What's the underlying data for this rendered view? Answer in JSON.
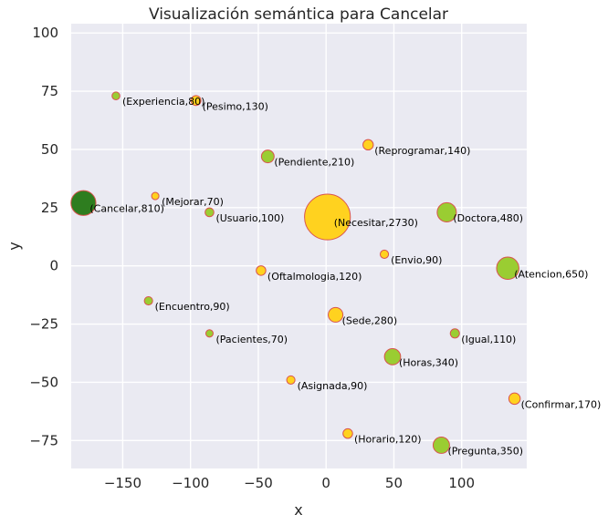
{
  "chart_data": {
    "type": "scatter",
    "title": "Visualización semántica para Cancelar",
    "xlabel": "x",
    "ylabel": "y",
    "xlim": [
      -188,
      148
    ],
    "ylim": [
      -87,
      104
    ],
    "xticks": [
      -150,
      -100,
      -50,
      0,
      50,
      100
    ],
    "yticks": [
      -75,
      -50,
      -25,
      0,
      25,
      50,
      75,
      100
    ],
    "xtick_labels": [
      "−150",
      "−100",
      "−50",
      "0",
      "50",
      "100"
    ],
    "ytick_labels": [
      "−75",
      "−50",
      "−25",
      "0",
      "25",
      "50",
      "75",
      "100"
    ],
    "grid": true,
    "colors": {
      "background": "#eaeaf2",
      "grid": "#ffffff",
      "edge": "#d9534f",
      "yellow": "#ffd21f",
      "green": "#9acd32",
      "dark_green": "#2e7d1f"
    },
    "points": [
      {
        "word": "Cancelar",
        "value": 810,
        "x": -179,
        "y": 27,
        "color": "dark_green",
        "label": "(Cancelar,810)"
      },
      {
        "word": "Experiencia",
        "value": 80,
        "x": -155,
        "y": 73,
        "color": "green",
        "label": "(Experiencia,80)"
      },
      {
        "word": "Pesimo",
        "value": 130,
        "x": -96,
        "y": 71,
        "color": "yellow",
        "label": "(Pesimo,130)"
      },
      {
        "word": "Reprogramar",
        "value": 140,
        "x": 31,
        "y": 52,
        "color": "yellow",
        "label": "(Reprogramar,140)"
      },
      {
        "word": "Pendiente",
        "value": 210,
        "x": -43,
        "y": 47,
        "color": "green",
        "label": "(Pendiente,210)"
      },
      {
        "word": "Mejorar",
        "value": 70,
        "x": -126,
        "y": 30,
        "color": "yellow",
        "label": "(Mejorar,70)"
      },
      {
        "word": "Usuario",
        "value": 100,
        "x": -86,
        "y": 23,
        "color": "green",
        "label": "(Usuario,100)"
      },
      {
        "word": "Necesitar",
        "value": 2730,
        "x": 1,
        "y": 21,
        "color": "yellow",
        "label": "(Necesitar,2730)"
      },
      {
        "word": "Doctora",
        "value": 480,
        "x": 89,
        "y": 23,
        "color": "green",
        "label": "(Doctora,480)"
      },
      {
        "word": "Envio",
        "value": 90,
        "x": 43,
        "y": 5,
        "color": "yellow",
        "label": "(Envio,90)"
      },
      {
        "word": "Atencion",
        "value": 650,
        "x": 134,
        "y": -1,
        "color": "green",
        "label": "(Atencion,650)"
      },
      {
        "word": "Oftalmologia",
        "value": 120,
        "x": -48,
        "y": -2,
        "color": "yellow",
        "label": "(Oftalmologia,120)"
      },
      {
        "word": "Encuentro",
        "value": 90,
        "x": -131,
        "y": -15,
        "color": "green",
        "label": "(Encuentro,90)"
      },
      {
        "word": "Sede",
        "value": 280,
        "x": 7,
        "y": -21,
        "color": "yellow",
        "label": "(Sede,280)"
      },
      {
        "word": "Pacientes",
        "value": 70,
        "x": -86,
        "y": -29,
        "color": "green",
        "label": "(Pacientes,70)"
      },
      {
        "word": "Igual",
        "value": 110,
        "x": 95,
        "y": -29,
        "color": "green",
        "label": "(Igual,110)"
      },
      {
        "word": "Horas",
        "value": 340,
        "x": 49,
        "y": -39,
        "color": "green",
        "label": "(Horas,340)"
      },
      {
        "word": "Asignada",
        "value": 90,
        "x": -26,
        "y": -49,
        "color": "yellow",
        "label": "(Asignada,90)"
      },
      {
        "word": "Confirmar",
        "value": 170,
        "x": 139,
        "y": -57,
        "color": "yellow",
        "label": "(Confirmar,170)"
      },
      {
        "word": "Horario",
        "value": 120,
        "x": 16,
        "y": -72,
        "color": "yellow",
        "label": "(Horario,120)"
      },
      {
        "word": "Pregunta",
        "value": 350,
        "x": 85,
        "y": -77,
        "color": "green",
        "label": "(Pregunta,350)"
      }
    ]
  }
}
